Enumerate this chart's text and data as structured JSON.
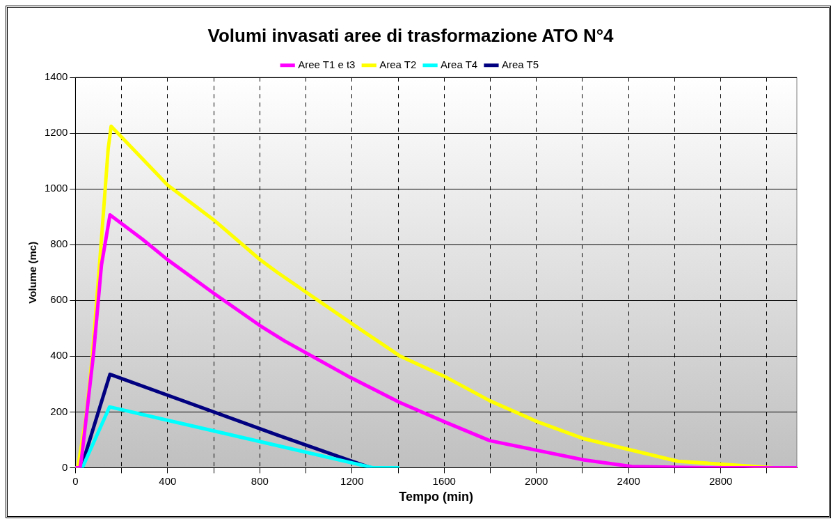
{
  "chart_data": {
    "type": "line",
    "title": "Volumi invasati aree di trasformazione ATO N°4",
    "xlabel": "Tempo (min)",
    "ylabel": "Volume (mc)",
    "xlim": [
      0,
      3130
    ],
    "ylim": [
      0,
      1400
    ],
    "xticks": [
      0,
      {
        "value": 200,
        "label": null
      },
      400,
      {
        "value": 600,
        "label": null
      },
      800,
      {
        "value": 1000,
        "label": null
      },
      1200,
      {
        "value": 1400,
        "label": null
      },
      1600,
      {
        "value": 1800,
        "label": null
      },
      2000,
      {
        "value": 2200,
        "label": null
      },
      2400,
      {
        "value": 2600,
        "label": null
      },
      2800,
      {
        "value": 3000,
        "label": null
      }
    ],
    "yticks": [
      0,
      200,
      400,
      600,
      800,
      1000,
      1200,
      1400
    ],
    "grid": true,
    "legend": "top",
    "marker": "none",
    "line_style": "solid",
    "series": [
      {
        "name": "Aree T1 e t3",
        "color": "#ff00ff",
        "x": [
          0,
          20,
          27,
          78,
          113,
          150,
          290,
          400,
          600,
          800,
          907,
          1183,
          1407,
          1600,
          1798,
          2206,
          2414,
          2738,
          3130
        ],
        "values": [
          0,
          0,
          36,
          404,
          727,
          907,
          820,
          746,
          626,
          510,
          455,
          328,
          234,
          165,
          97,
          28,
          4,
          0,
          0
        ]
      },
      {
        "name": "Area T2",
        "color": "#ffff00",
        "x": [
          0,
          10,
          45,
          74,
          113,
          142,
          155,
          400,
          600,
          800,
          877,
          1183,
          1407,
          1600,
          1798,
          2004,
          2206,
          2614,
          3030,
          3130
        ],
        "values": [
          0,
          0,
          173,
          404,
          820,
          1143,
          1225,
          1014,
          889,
          747,
          700,
          526,
          401,
          328,
          240,
          165,
          104,
          23,
          0,
          0
        ]
      },
      {
        "name": "Area T4",
        "color": "#00ffff",
        "x": [
          0,
          30,
          148,
          877,
          1290,
          1400
        ],
        "values": [
          0,
          0,
          218,
          79,
          0,
          0
        ]
      },
      {
        "name": "Area T5",
        "color": "#000080",
        "x": [
          0,
          25,
          150,
          877,
          1280
        ],
        "values": [
          0,
          0,
          335,
          117,
          0
        ]
      }
    ]
  }
}
